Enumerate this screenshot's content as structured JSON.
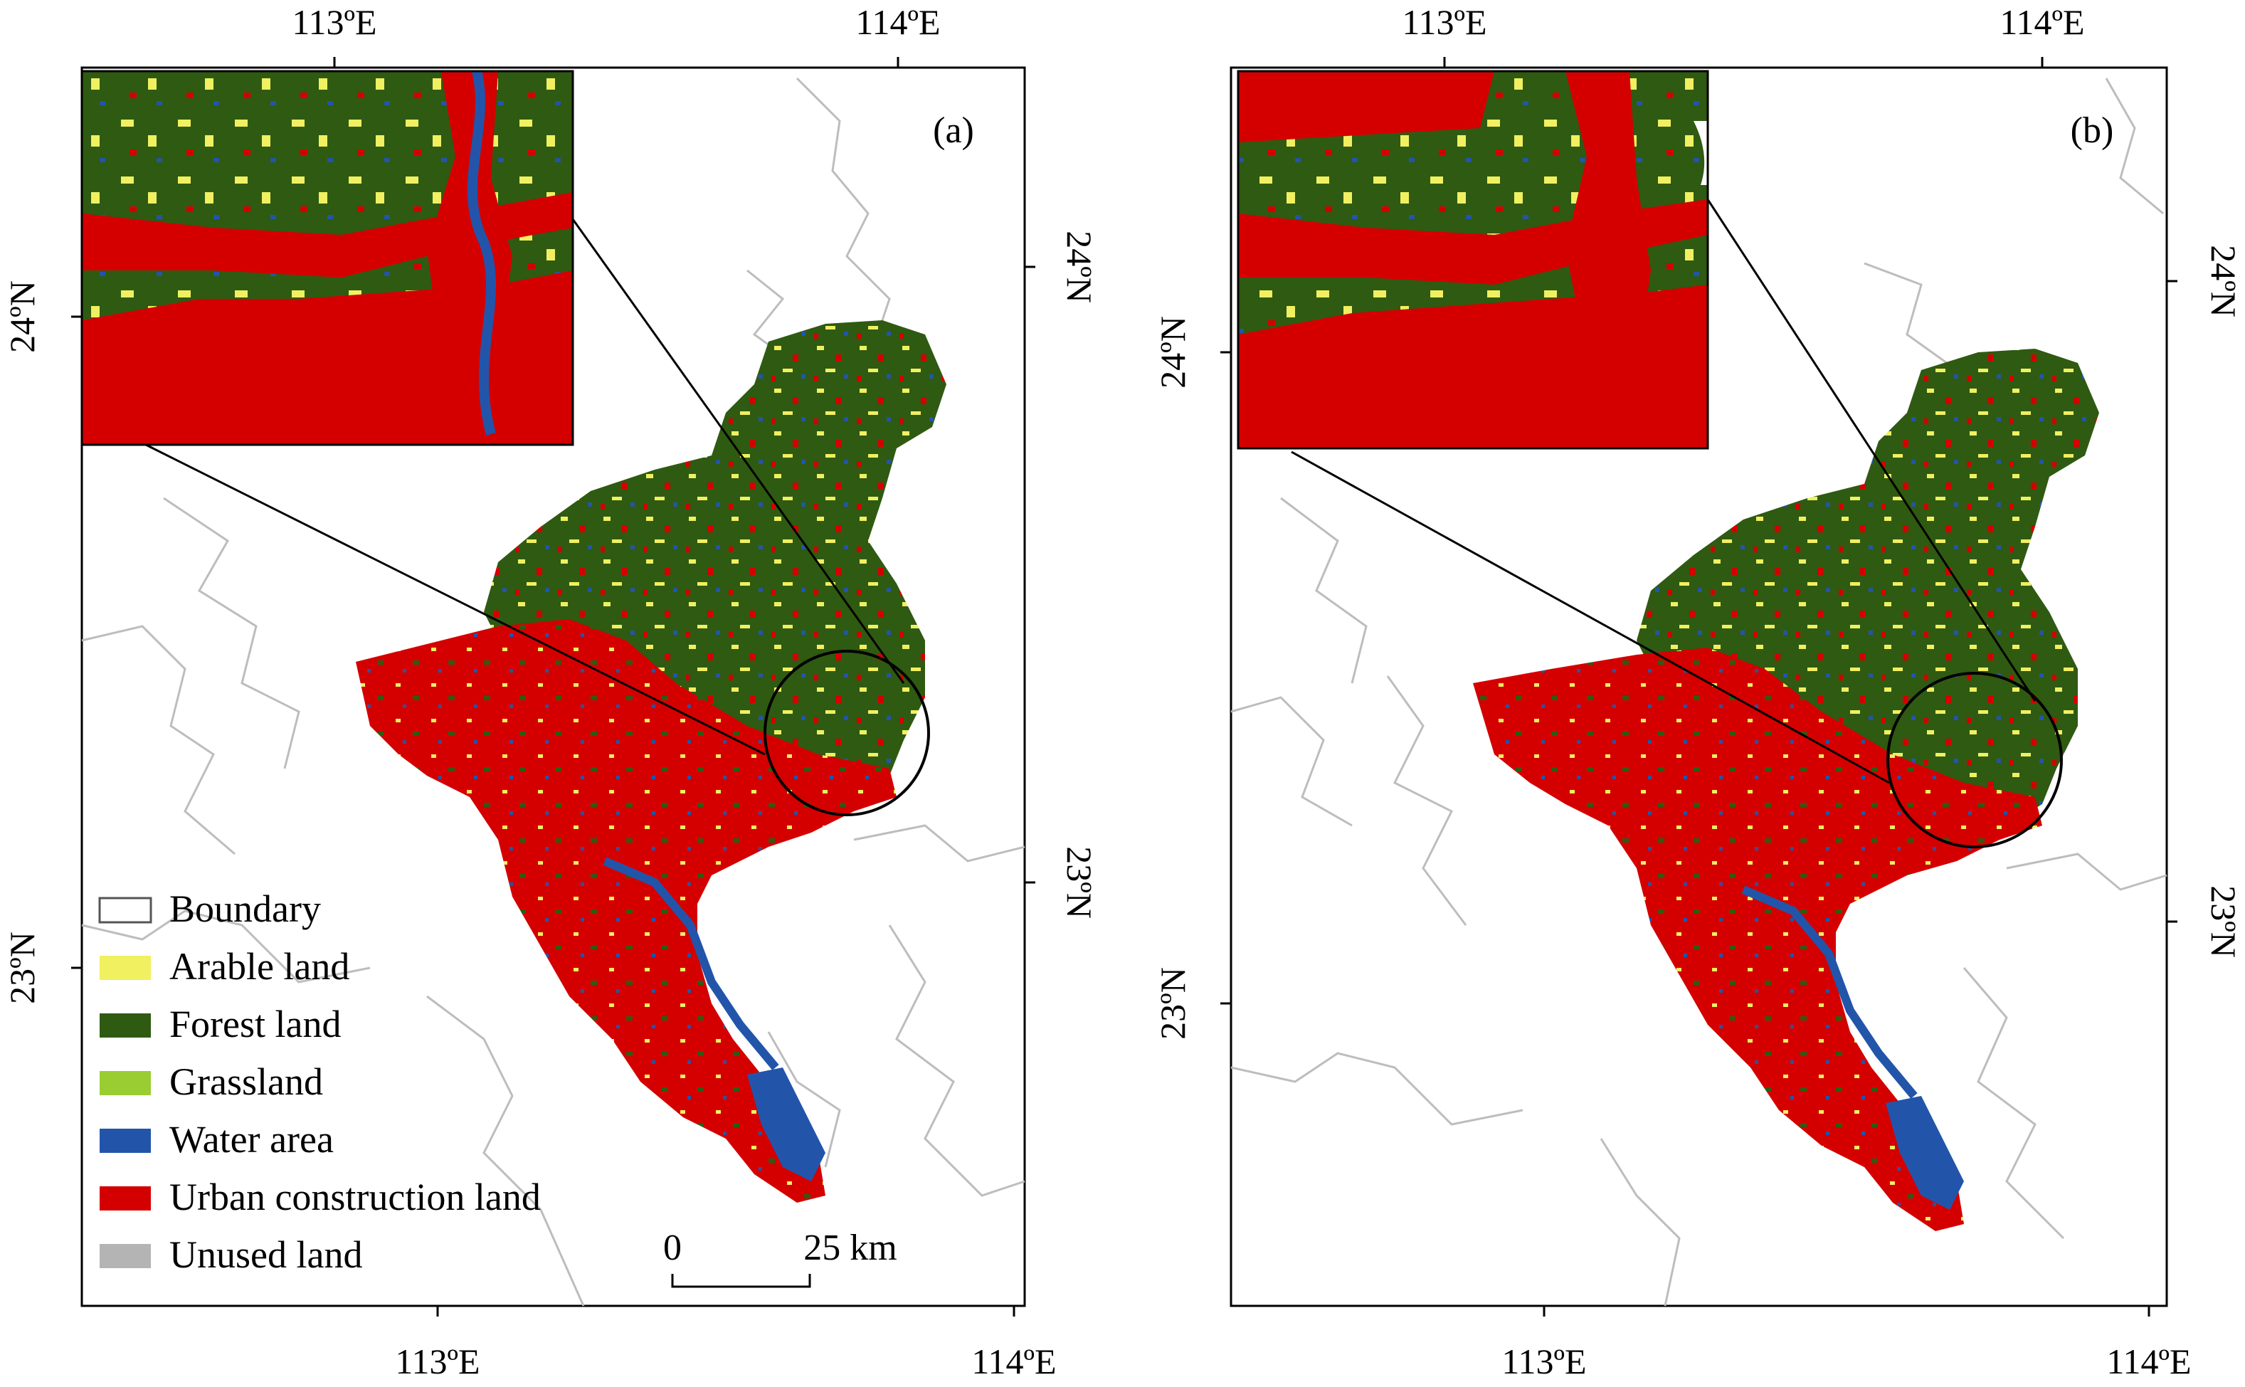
{
  "panels": [
    {
      "id": "a",
      "label": "(a)",
      "top_ticks": [
        "113ºE",
        "114ºE"
      ],
      "bottom_ticks": [
        "113ºE",
        "114ºE"
      ],
      "left_ticks": [
        "24ºN",
        "23ºN"
      ],
      "right_ticks": [
        "24ºN",
        "23ºN"
      ]
    },
    {
      "id": "b",
      "label": "(b)",
      "top_ticks": [
        "113ºE",
        "114ºE"
      ],
      "bottom_ticks": [
        "113ºE",
        "114ºE"
      ],
      "left_ticks": [
        "24ºN",
        "23ºN"
      ],
      "right_ticks": [
        "24ºN",
        "23ºN"
      ]
    }
  ],
  "legend": [
    {
      "label": "Boundary",
      "color": "#ffffff",
      "outline": true
    },
    {
      "label": "Arable land",
      "color": "#f0f060"
    },
    {
      "label": "Forest land",
      "color": "#2f5a12"
    },
    {
      "label": "Grassland",
      "color": "#9acd32"
    },
    {
      "label": "Water area",
      "color": "#2255aa"
    },
    {
      "label": "Urban construction land",
      "color": "#d40000"
    },
    {
      "label": "Unused land",
      "color": "#b4b4b4"
    }
  ],
  "scale_bar": {
    "start": "0",
    "end": "25 km"
  },
  "colors": {
    "arable": "#f0f060",
    "forest": "#2f5a12",
    "grass": "#9acd32",
    "water": "#2255aa",
    "urban": "#d40000",
    "unused": "#b4b4b4",
    "boundary": "#bdbdbd"
  }
}
